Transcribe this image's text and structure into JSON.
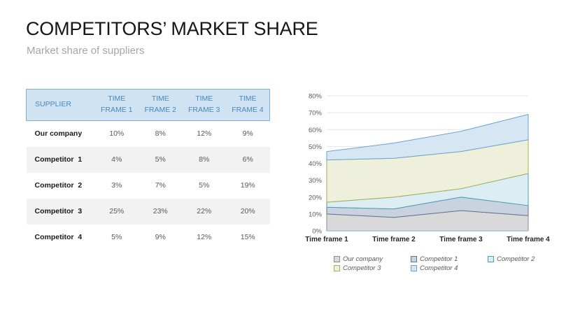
{
  "slide": {
    "title": "COMPETITORS’ MARKET SHARE",
    "subtitle": "Market share of suppliers"
  },
  "table": {
    "columns": [
      "SUPPLIER",
      "TIME FRAME 1",
      "TIME FRAME 2",
      "TIME FRAME 3",
      "TIME FRAME 4"
    ],
    "rows": [
      {
        "supplier": "Our company",
        "values": [
          "10%",
          "8%",
          "12%",
          "9%"
        ]
      },
      {
        "supplier": "Competitor  1",
        "values": [
          "4%",
          "5%",
          "8%",
          "6%"
        ]
      },
      {
        "supplier": "Competitor  2",
        "values": [
          "3%",
          "7%",
          "5%",
          "19%"
        ]
      },
      {
        "supplier": "Competitor  3",
        "values": [
          "25%",
          "23%",
          "22%",
          "20%"
        ]
      },
      {
        "supplier": "Competitor  4",
        "values": [
          "5%",
          "9%",
          "12%",
          "15%"
        ]
      }
    ],
    "colors": {
      "header_bg": "#cfe3f3",
      "header_border": "#7fb2da",
      "header_text": "#4a87b8",
      "stripe_bg": "#f2f2f2",
      "value_text": "#595959"
    }
  },
  "chart_data": {
    "type": "area",
    "stacked": true,
    "x": [
      "Time frame 1",
      "Time frame 2",
      "Time frame 3",
      "Time frame 4"
    ],
    "series": [
      {
        "name": "Our company",
        "values": [
          10,
          8,
          12,
          9
        ],
        "fill": "#d9d9d9",
        "stroke": "#8a8a8a"
      },
      {
        "name": "Competitor 1",
        "values": [
          4,
          5,
          8,
          6
        ],
        "fill": "#c9d2df",
        "stroke": "#62758c"
      },
      {
        "name": "Competitor 2",
        "values": [
          3,
          7,
          5,
          19
        ],
        "fill": "#ddedf4",
        "stroke": "#4aa0b5"
      },
      {
        "name": "Competitor 3",
        "values": [
          25,
          23,
          22,
          20
        ],
        "fill": "#eef0db",
        "stroke": "#a0b254"
      },
      {
        "name": "Competitor 4",
        "values": [
          5,
          9,
          12,
          15
        ],
        "fill": "#d7e6f3",
        "stroke": "#6aa3d8"
      }
    ],
    "ylim": [
      0,
      80
    ],
    "ytick_step": 10,
    "ytick_suffix": "%",
    "grid": true,
    "legend_position": "bottom",
    "grid_color": "#e3e3e3",
    "axis_line_color": "#a9c4da",
    "tick_label_color": "#595959",
    "x_label_color": "#262626"
  }
}
